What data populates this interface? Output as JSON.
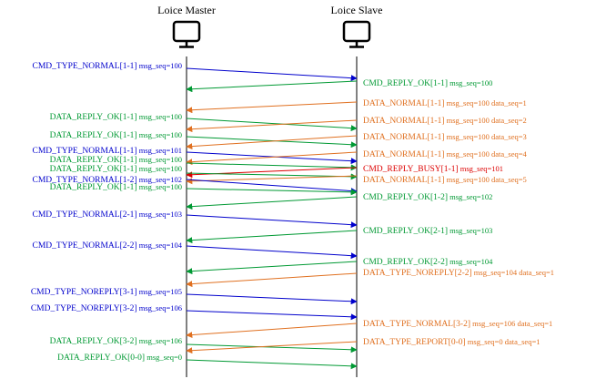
{
  "participants": {
    "master": {
      "title": "Loice Master",
      "icon": "monitor-icon"
    },
    "slave": {
      "title": "Loice Slave",
      "icon": "monitor-icon"
    }
  },
  "colors": {
    "command": "#0000cc",
    "reply_ok": "#009933",
    "data": "#e07020",
    "busy": "#dd0000",
    "lifeline": "#000000"
  },
  "messages": [
    {
      "dir": "m2s",
      "color": "command",
      "text": "CMD_TYPE_NORMAL[1-1]",
      "tail": " msg_seq=100"
    },
    {
      "dir": "s2m",
      "color": "reply_ok",
      "text": "CMD_REPLY_OK[1-1]",
      "tail": " msg_seq=100"
    },
    {
      "dir": "s2m",
      "color": "data",
      "text": "DATA_NORMAL[1-1]",
      "tail": " msg_seq=100 data_seq=1"
    },
    {
      "dir": "m2s",
      "color": "reply_ok",
      "text": "DATA_REPLY_OK[1-1]",
      "tail": " msg_seq=100"
    },
    {
      "dir": "s2m",
      "color": "data",
      "text": "DATA_NORMAL[1-1]",
      "tail": " msg_seq=100 data_seq=2"
    },
    {
      "dir": "m2s",
      "color": "reply_ok",
      "text": "DATA_REPLY_OK[1-1]",
      "tail": " msg_seq=100"
    },
    {
      "dir": "s2m",
      "color": "data",
      "text": "DATA_NORMAL[1-1]",
      "tail": " msg_seq=100 data_seq=3"
    },
    {
      "dir": "m2s",
      "color": "command",
      "text": "CMD_TYPE_NORMAL[1-1]",
      "tail": " msg_seq=101"
    },
    {
      "dir": "s2m",
      "color": "data",
      "text": "DATA_NORMAL[1-1]",
      "tail": " msg_seq=100 data_seq=4"
    },
    {
      "dir": "m2s",
      "color": "reply_ok",
      "text": "DATA_REPLY_OK[1-1]",
      "tail": " msg_seq=100"
    },
    {
      "dir": "s2m",
      "color": "busy",
      "text": "CMD_REPLY_BUSY[1-1]",
      "tail": " msg_seq=101"
    },
    {
      "dir": "m2s",
      "color": "reply_ok",
      "text": "DATA_REPLY_OK[1-1]",
      "tail": " msg_seq=100"
    },
    {
      "dir": "s2m",
      "color": "data",
      "text": "DATA_NORMAL[1-1]",
      "tail": " msg_seq=100 data_seq=5"
    },
    {
      "dir": "m2s",
      "color": "command",
      "text": "CMD_TYPE_NORMAL[1-2]",
      "tail": " msg_seq=102"
    },
    {
      "dir": "m2s",
      "color": "reply_ok",
      "text": "DATA_REPLY_OK[1-1]",
      "tail": " msg_seq=100"
    },
    {
      "dir": "s2m",
      "color": "reply_ok",
      "text": "CMD_REPLY_OK[1-2]",
      "tail": " msg_seq=102"
    },
    {
      "dir": "m2s",
      "color": "command",
      "text": "CMD_TYPE_NORMAL[2-1]",
      "tail": " msg_seq=103"
    },
    {
      "dir": "s2m",
      "color": "reply_ok",
      "text": "CMD_REPLY_OK[2-1]",
      "tail": " msg_seq=103"
    },
    {
      "dir": "m2s",
      "color": "command",
      "text": "CMD_TYPE_NORMAL[2-2]",
      "tail": " msg_seq=104"
    },
    {
      "dir": "s2m",
      "color": "reply_ok",
      "text": "CMD_REPLY_OK[2-2]",
      "tail": " msg_seq=104"
    },
    {
      "dir": "s2m",
      "color": "data",
      "text": "DATA_TYPE_NOREPLY[2-2]",
      "tail": " msg_seq=104 data_seq=1"
    },
    {
      "dir": "m2s",
      "color": "command",
      "text": "CMD_TYPE_NOREPLY[3-1]",
      "tail": " msg_seq=105"
    },
    {
      "dir": "m2s",
      "color": "command",
      "text": "CMD_TYPE_NOREPLY[3-2]",
      "tail": " msg_seq=106"
    },
    {
      "dir": "s2m",
      "color": "data",
      "text": "DATA_TYPE_NORMAL[3-2]",
      "tail": " msg_seq=106 data_seq=1"
    },
    {
      "dir": "m2s",
      "color": "reply_ok",
      "text": "DATA_REPLY_OK[3-2]",
      "tail": " msg_seq=106"
    },
    {
      "dir": "s2m",
      "color": "data",
      "text": "DATA_TYPE_REPORT[0-0]",
      "tail": " msg_seq=0 data_seq=1"
    },
    {
      "dir": "m2s",
      "color": "reply_ok",
      "text": "DATA_REPLY_OK[0-0]",
      "tail": " msg_seq=0"
    }
  ]
}
